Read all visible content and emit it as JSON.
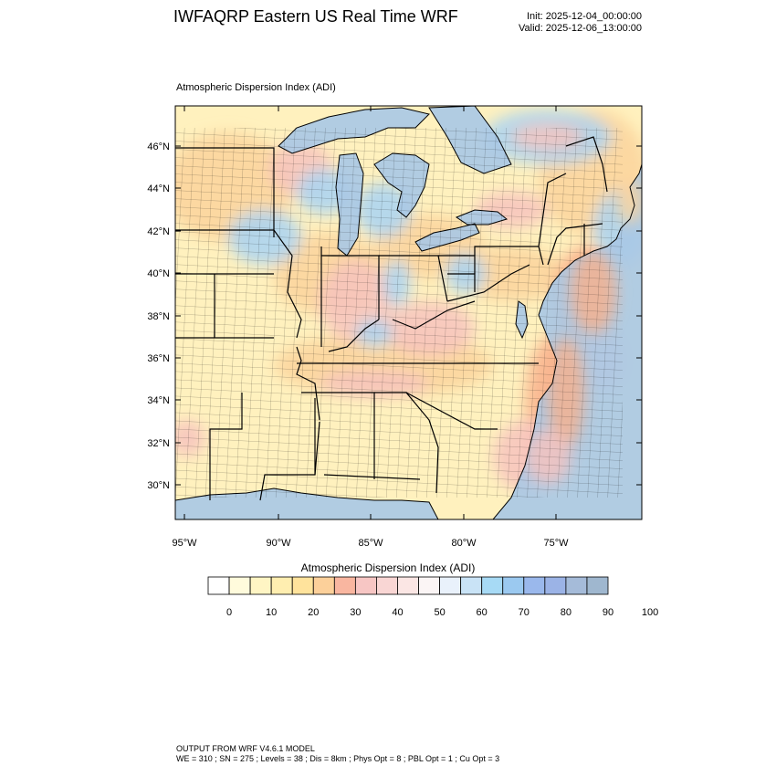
{
  "header": {
    "title": "IWFAQRP Eastern US Real Time WRF",
    "init": "Init: 2025-12-04_00:00:00",
    "valid": "Valid: 2025-12-06_13:00:00"
  },
  "plot": {
    "title": "Atmospheric Dispersion Index   (ADI)",
    "lat_labels": [
      "46°N",
      "44°N",
      "42°N",
      "40°N",
      "38°N",
      "36°N",
      "34°N",
      "32°N",
      "30°N"
    ],
    "lon_labels": [
      "95°W",
      "90°W",
      "85°W",
      "80°W",
      "75°W"
    ]
  },
  "colorbar": {
    "title": "Atmospheric Dispersion Index  (ADI)",
    "labels": [
      "0",
      "10",
      "20",
      "30",
      "40",
      "50",
      "60",
      "70",
      "80",
      "90",
      "100"
    ],
    "colors": [
      "#ffffff",
      "#fffbdc",
      "#fff5c4",
      "#ffeeb0",
      "#ffe39c",
      "#fcd09a",
      "#f9b6a0",
      "#f7c6c4",
      "#f9d6d4",
      "#fbe6e4",
      "#fbf5f5",
      "#e9f1fb",
      "#c9e3f6",
      "#a7daf5",
      "#9bc9f0",
      "#9ab8ec",
      "#9bb3e6",
      "#a5bbd9",
      "#9fb7cf"
    ],
    "outline_color": "#000000"
  },
  "map_colors": {
    "water": "#a8c8e6",
    "land_low": "#fff1be",
    "land_mid": "#fbd39c",
    "pink": "#f7c3bd",
    "high_blue": "#a9d3f3",
    "coastal_orange": "#f8b08c",
    "boundary": "#000000"
  },
  "footer": {
    "line1": "OUTPUT FROM WRF V4.6.1 MODEL",
    "line2": "WE = 310 ; SN = 275 ; Levels = 38 ; Dis = 8km ; Phys Opt = 8 ; PBL Opt = 1 ; Cu Opt = 3"
  }
}
